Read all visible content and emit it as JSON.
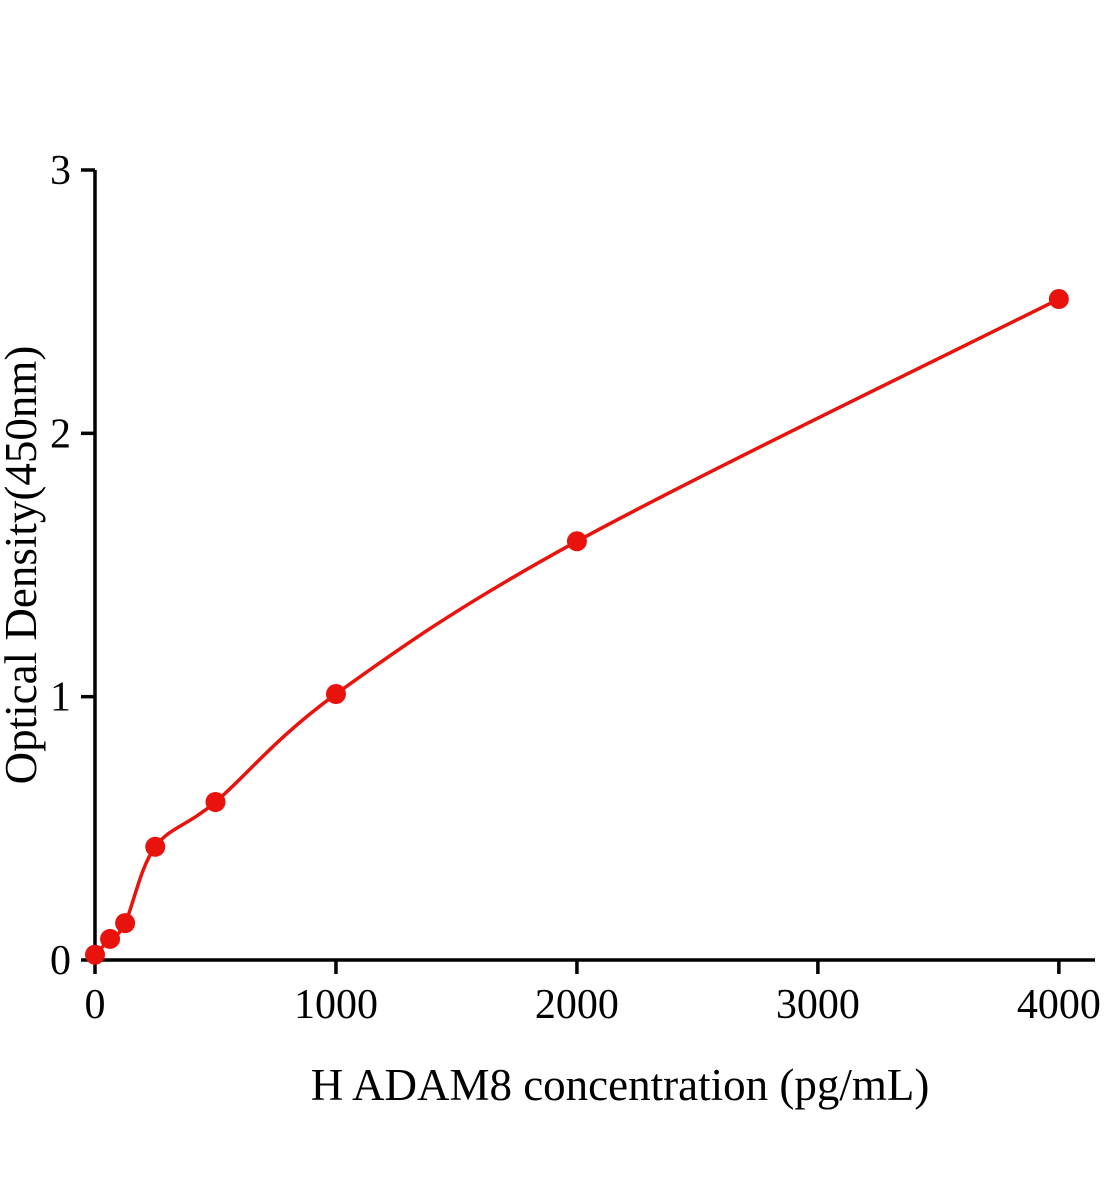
{
  "chart_data": {
    "type": "scatter",
    "title": "",
    "xlabel": "H ADAM8 concentration (pg/mL)",
    "ylabel": "Optical Density(450nm)",
    "x": [
      0,
      62.5,
      125,
      250,
      500,
      1000,
      2000,
      4000
    ],
    "y": [
      0.02,
      0.08,
      0.14,
      0.43,
      0.6,
      1.01,
      1.59,
      2.51
    ],
    "xlim": [
      0,
      4150
    ],
    "ylim": [
      0,
      3
    ],
    "xticks": [
      0,
      1000,
      2000,
      3000,
      4000
    ],
    "yticks": [
      0,
      1,
      2,
      3
    ],
    "grid": false,
    "legend": null,
    "marker": "circle",
    "has_fit_curve": true,
    "marker_color": "#e8130c",
    "line_color": "#e8130c",
    "axis_color": "#000000"
  }
}
